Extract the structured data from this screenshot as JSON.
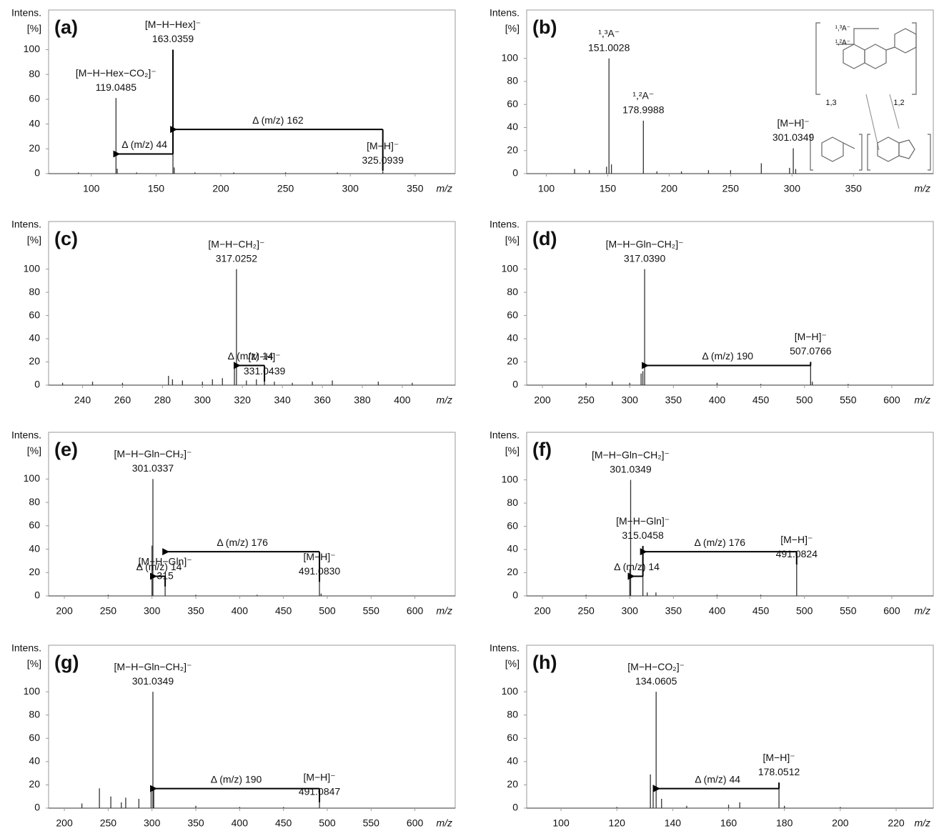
{
  "chart_data": [
    {
      "type": "spectrum",
      "title": "(a)",
      "xlabel": "m/z",
      "ylabel": [
        "Intens.",
        "[%]"
      ],
      "xlim": [
        67,
        381
      ],
      "ylim": [
        0,
        132
      ],
      "xticks": [
        100,
        150,
        200,
        250,
        300,
        350
      ],
      "yticks": [
        0,
        20,
        40,
        60,
        80,
        100
      ],
      "color": "#333333",
      "x": [
        90,
        119.0485,
        120,
        135,
        163.0359,
        164,
        180,
        210,
        250,
        290,
        325.0939
      ],
      "values": [
        1,
        61,
        4,
        1,
        100,
        5,
        1,
        1,
        1,
        1,
        2
      ],
      "ion_labels": [
        null,
        "[M−H−Hex−CO₂]⁻",
        null,
        null,
        "[M−H−Hex]⁻",
        null,
        null,
        null,
        null,
        null,
        "[M−H]⁻"
      ],
      "x_labels": [
        null,
        "119.0485",
        null,
        null,
        "163.0359",
        null,
        null,
        null,
        null,
        null,
        "325.0939"
      ],
      "losses": [
        null,
        null,
        null,
        null,
        44,
        null,
        null,
        null,
        null,
        null,
        162
      ],
      "loss_labels": [
        null,
        null,
        null,
        null,
        "Δ (m/z) 44",
        null,
        null,
        null,
        null,
        null,
        "Δ (m/z) 162"
      ]
    },
    {
      "type": "spectrum",
      "title": "(b)",
      "xlabel": "m/z",
      "ylabel": [
        "Intens.",
        "[%]"
      ],
      "xlim": [
        84,
        415
      ],
      "ylim": [
        0,
        142
      ],
      "xticks": [
        100,
        150,
        200,
        250,
        300,
        350
      ],
      "yticks": [
        0,
        20,
        40,
        60,
        80,
        100
      ],
      "color": "#333333",
      "x": [
        123,
        135,
        149,
        151.0028,
        153,
        178.9988,
        190,
        210,
        232,
        250,
        275,
        298,
        301.0349,
        303
      ],
      "values": [
        4,
        3,
        6,
        100,
        8,
        46,
        2,
        2,
        3,
        3,
        9,
        5,
        22,
        4
      ],
      "ion_labels": [
        null,
        null,
        null,
        "¹,³A⁻",
        null,
        "¹,²A⁻",
        null,
        null,
        null,
        null,
        null,
        null,
        "[M−H]⁻",
        null
      ],
      "x_labels": [
        null,
        null,
        null,
        "151.0028",
        null,
        "178.9988",
        null,
        null,
        null,
        null,
        null,
        null,
        "301.0349",
        null
      ],
      "losses": [
        null,
        null,
        null,
        null,
        null,
        null,
        null,
        null,
        null,
        null,
        null,
        null,
        null,
        null
      ],
      "loss_labels": [
        null,
        null,
        null,
        null,
        null,
        null,
        null,
        null,
        null,
        null,
        null,
        null,
        null,
        null
      ],
      "inset": {
        "labels": [
          "¹,³A⁻",
          "¹,²A⁻",
          "1,3",
          "1,2"
        ]
      }
    },
    {
      "type": "spectrum",
      "title": "(c)",
      "xlabel": "m/z",
      "ylabel": [
        "Intens.",
        "[%]"
      ],
      "xlim": [
        223,
        426.5
      ],
      "ylim": [
        0,
        141
      ],
      "xticks": [
        240,
        260,
        280,
        300,
        320,
        340,
        360,
        380,
        400
      ],
      "yticks": [
        0,
        20,
        40,
        60,
        80,
        100
      ],
      "color": "#333333",
      "x": [
        230,
        245,
        260,
        283,
        285,
        290,
        300,
        305,
        310,
        316,
        317.0252,
        322,
        327,
        331.0439,
        336,
        345,
        355,
        365,
        388,
        405
      ],
      "values": [
        2,
        3,
        2,
        8,
        5,
        4,
        3,
        5,
        6,
        20,
        100,
        4,
        5,
        3,
        3,
        2,
        3,
        4,
        3,
        2
      ],
      "ion_labels": [
        null,
        null,
        null,
        null,
        null,
        null,
        null,
        null,
        null,
        null,
        "[M−H−CH₂]⁻",
        null,
        null,
        "[M−H]⁻",
        null,
        null,
        null,
        null,
        null,
        null
      ],
      "x_labels": [
        null,
        null,
        null,
        null,
        null,
        null,
        null,
        null,
        null,
        null,
        "317.0252",
        null,
        null,
        "331.0439",
        null,
        null,
        null,
        null,
        null,
        null
      ],
      "losses": [
        null,
        null,
        null,
        null,
        null,
        null,
        null,
        null,
        null,
        null,
        null,
        null,
        null,
        14,
        null,
        null,
        null,
        null,
        null,
        null
      ],
      "loss_labels": [
        null,
        null,
        null,
        null,
        null,
        null,
        null,
        null,
        null,
        null,
        null,
        null,
        null,
        "Δ (m/z) 14",
        null,
        null,
        null,
        null,
        null,
        null
      ]
    },
    {
      "type": "spectrum",
      "title": "(d)",
      "xlabel": "m/z",
      "ylabel": [
        "Intens.",
        "[%]"
      ],
      "xlim": [
        182,
        647.5
      ],
      "ylim": [
        0,
        141
      ],
      "xticks": [
        200,
        250,
        300,
        350,
        400,
        450,
        500,
        550,
        600
      ],
      "yticks": [
        0,
        20,
        40,
        60,
        80,
        100
      ],
      "color": "#333333",
      "x": [
        250,
        280,
        300,
        313,
        315,
        317.039,
        400,
        450,
        507.0766,
        509,
        550
      ],
      "values": [
        2,
        3,
        2,
        10,
        12,
        100,
        2,
        1,
        20,
        3,
        1
      ],
      "ion_labels": [
        null,
        null,
        null,
        null,
        null,
        "[M−H−Gln−CH₂]⁻",
        null,
        null,
        "[M−H]⁻",
        null,
        null
      ],
      "x_labels": [
        null,
        null,
        null,
        null,
        null,
        "317.0390",
        null,
        null,
        "507.0766",
        null,
        null
      ],
      "losses": [
        null,
        null,
        null,
        null,
        null,
        null,
        null,
        null,
        190,
        null,
        null
      ],
      "loss_labels": [
        null,
        null,
        null,
        null,
        null,
        null,
        null,
        null,
        "Δ (m/z) 190",
        null,
        null
      ]
    },
    {
      "type": "spectrum",
      "title": "(e)",
      "xlabel": "m/z",
      "ylabel": [
        "Intens.",
        "[%]"
      ],
      "xlim": [
        182,
        646
      ],
      "ylim": [
        0,
        140
      ],
      "xticks": [
        200,
        250,
        300,
        350,
        400,
        450,
        500,
        550,
        600
      ],
      "yticks": [
        0,
        20,
        40,
        60,
        80,
        100
      ],
      "color": "#333333",
      "x": [
        250,
        300,
        301.0337,
        315,
        350,
        420,
        491.083,
        493
      ],
      "values": [
        1,
        43,
        100,
        8,
        1,
        1,
        12,
        2
      ],
      "ion_labels": [
        null,
        null,
        "[M−H−Gln−CH₂]⁻",
        "[M−H−Gln]⁻",
        null,
        null,
        "[M−H]⁻",
        null
      ],
      "x_labels": [
        null,
        null,
        "301.0337",
        "315",
        null,
        null,
        "491.0830",
        null
      ],
      "losses": [
        null,
        null,
        null,
        14,
        null,
        null,
        176,
        null
      ],
      "loss_labels": [
        null,
        null,
        null,
        "Δ (m/z) 14",
        null,
        null,
        "Δ (m/z) 176",
        null
      ]
    },
    {
      "type": "spectrum",
      "title": "(f)",
      "xlabel": "m/z",
      "ylabel": [
        "Intens.",
        "[%]"
      ],
      "xlim": [
        182,
        647.5
      ],
      "ylim": [
        0,
        141
      ],
      "xticks": [
        200,
        250,
        300,
        350,
        400,
        450,
        500,
        550,
        600
      ],
      "yticks": [
        0,
        20,
        40,
        60,
        80,
        100
      ],
      "color": "#333333",
      "x": [
        250,
        300,
        301.0349,
        315.0458,
        320,
        330,
        400,
        450,
        491.0824
      ],
      "values": [
        1,
        23,
        100,
        43,
        3,
        3,
        1,
        1,
        27
      ],
      "ion_labels": [
        null,
        null,
        "[M−H−Gln−CH₂]⁻",
        "[M−H−Gln]⁻",
        null,
        null,
        null,
        null,
        "[M−H]⁻"
      ],
      "x_labels": [
        null,
        null,
        "301.0349",
        "315.0458",
        null,
        null,
        null,
        null,
        "491.0824"
      ],
      "losses": [
        null,
        null,
        null,
        14,
        null,
        null,
        null,
        null,
        176
      ],
      "loss_labels": [
        null,
        null,
        null,
        "Δ (m/z) 14",
        null,
        null,
        null,
        null,
        "Δ (m/z) 176"
      ]
    },
    {
      "type": "spectrum",
      "title": "(g)",
      "xlabel": "m/z",
      "ylabel": [
        "Intens.",
        "[%]"
      ],
      "xlim": [
        182,
        646
      ],
      "ylim": [
        0,
        140
      ],
      "xticks": [
        200,
        250,
        300,
        350,
        400,
        450,
        500,
        550,
        600
      ],
      "yticks": [
        0,
        20,
        40,
        60,
        80,
        100
      ],
      "color": "#333333",
      "x": [
        220,
        240,
        253,
        265,
        270,
        285,
        299,
        301.0349,
        302,
        350,
        400,
        450,
        491.0847
      ],
      "values": [
        4,
        17,
        10,
        5,
        9,
        8,
        15,
        100,
        18,
        2,
        1,
        1,
        5
      ],
      "ion_labels": [
        null,
        null,
        null,
        null,
        null,
        null,
        null,
        "[M−H−Gln−CH₂]⁻",
        null,
        null,
        null,
        null,
        "[M−H]⁻"
      ],
      "x_labels": [
        null,
        null,
        null,
        null,
        null,
        null,
        null,
        "301.0349",
        null,
        null,
        null,
        null,
        "491.0847"
      ],
      "losses": [
        null,
        null,
        null,
        null,
        null,
        null,
        null,
        null,
        null,
        null,
        null,
        null,
        190
      ],
      "loss_labels": [
        null,
        null,
        null,
        null,
        null,
        null,
        null,
        null,
        null,
        null,
        null,
        null,
        "Δ (m/z) 190"
      ]
    },
    {
      "type": "spectrum",
      "title": "(h)",
      "xlabel": "m/z",
      "ylabel": [
        "Intens.",
        "[%]"
      ],
      "xlim": [
        87.7,
        233.3
      ],
      "ylim": [
        0,
        140
      ],
      "xticks": [
        100,
        120,
        140,
        160,
        180,
        200,
        220
      ],
      "yticks": [
        0,
        20,
        40,
        60,
        80,
        100
      ],
      "color": "#333333",
      "x": [
        120,
        132,
        133,
        134.0605,
        136,
        145,
        160,
        164,
        178.0512,
        180,
        200
      ],
      "values": [
        1,
        29,
        20,
        100,
        8,
        2,
        3,
        5,
        22,
        2,
        1
      ],
      "ion_labels": [
        null,
        null,
        null,
        "[M−H−CO₂]⁻",
        null,
        null,
        null,
        null,
        "[M−H]⁻",
        null,
        null
      ],
      "x_labels": [
        null,
        null,
        null,
        "134.0605",
        null,
        null,
        null,
        null,
        "178.0512",
        null,
        null
      ],
      "losses": [
        null,
        null,
        null,
        null,
        null,
        null,
        null,
        null,
        44,
        null,
        null
      ],
      "loss_labels": [
        null,
        null,
        null,
        null,
        null,
        null,
        null,
        null,
        "Δ (m/z) 44",
        null,
        null
      ]
    }
  ]
}
